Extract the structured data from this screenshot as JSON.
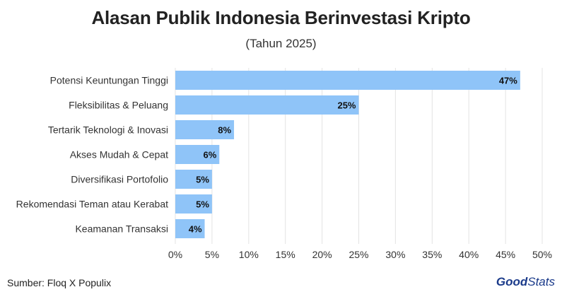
{
  "chart_data": {
    "type": "bar",
    "orientation": "horizontal",
    "title": "Alasan Publik Indonesia Berinvestasi Kripto",
    "subtitle": "(Tahun 2025)",
    "categories": [
      "Potensi Keuntungan Tinggi",
      "Fleksibilitas & Peluang",
      "Tertarik Teknologi & Inovasi",
      "Akses Mudah & Cepat",
      "Diversifikasi Portofolio",
      "Rekomendasi Teman atau Kerabat",
      "Keamanan Transaksi"
    ],
    "values": [
      47,
      25,
      8,
      6,
      5,
      5,
      4
    ],
    "data_labels": [
      "47%",
      "25%",
      "8%",
      "6%",
      "5%",
      "5%",
      "4%"
    ],
    "xlim": [
      0,
      50
    ],
    "xticks": [
      "0%",
      "5%",
      "10%",
      "15%",
      "20%",
      "25%",
      "30%",
      "35%",
      "40%",
      "45%",
      "50%"
    ],
    "grid": true,
    "bar_color": "#8fc4f8"
  },
  "footer": {
    "source": "Sumber: Floq X Populix",
    "brand_bold": "Good",
    "brand_light": "Stats"
  }
}
